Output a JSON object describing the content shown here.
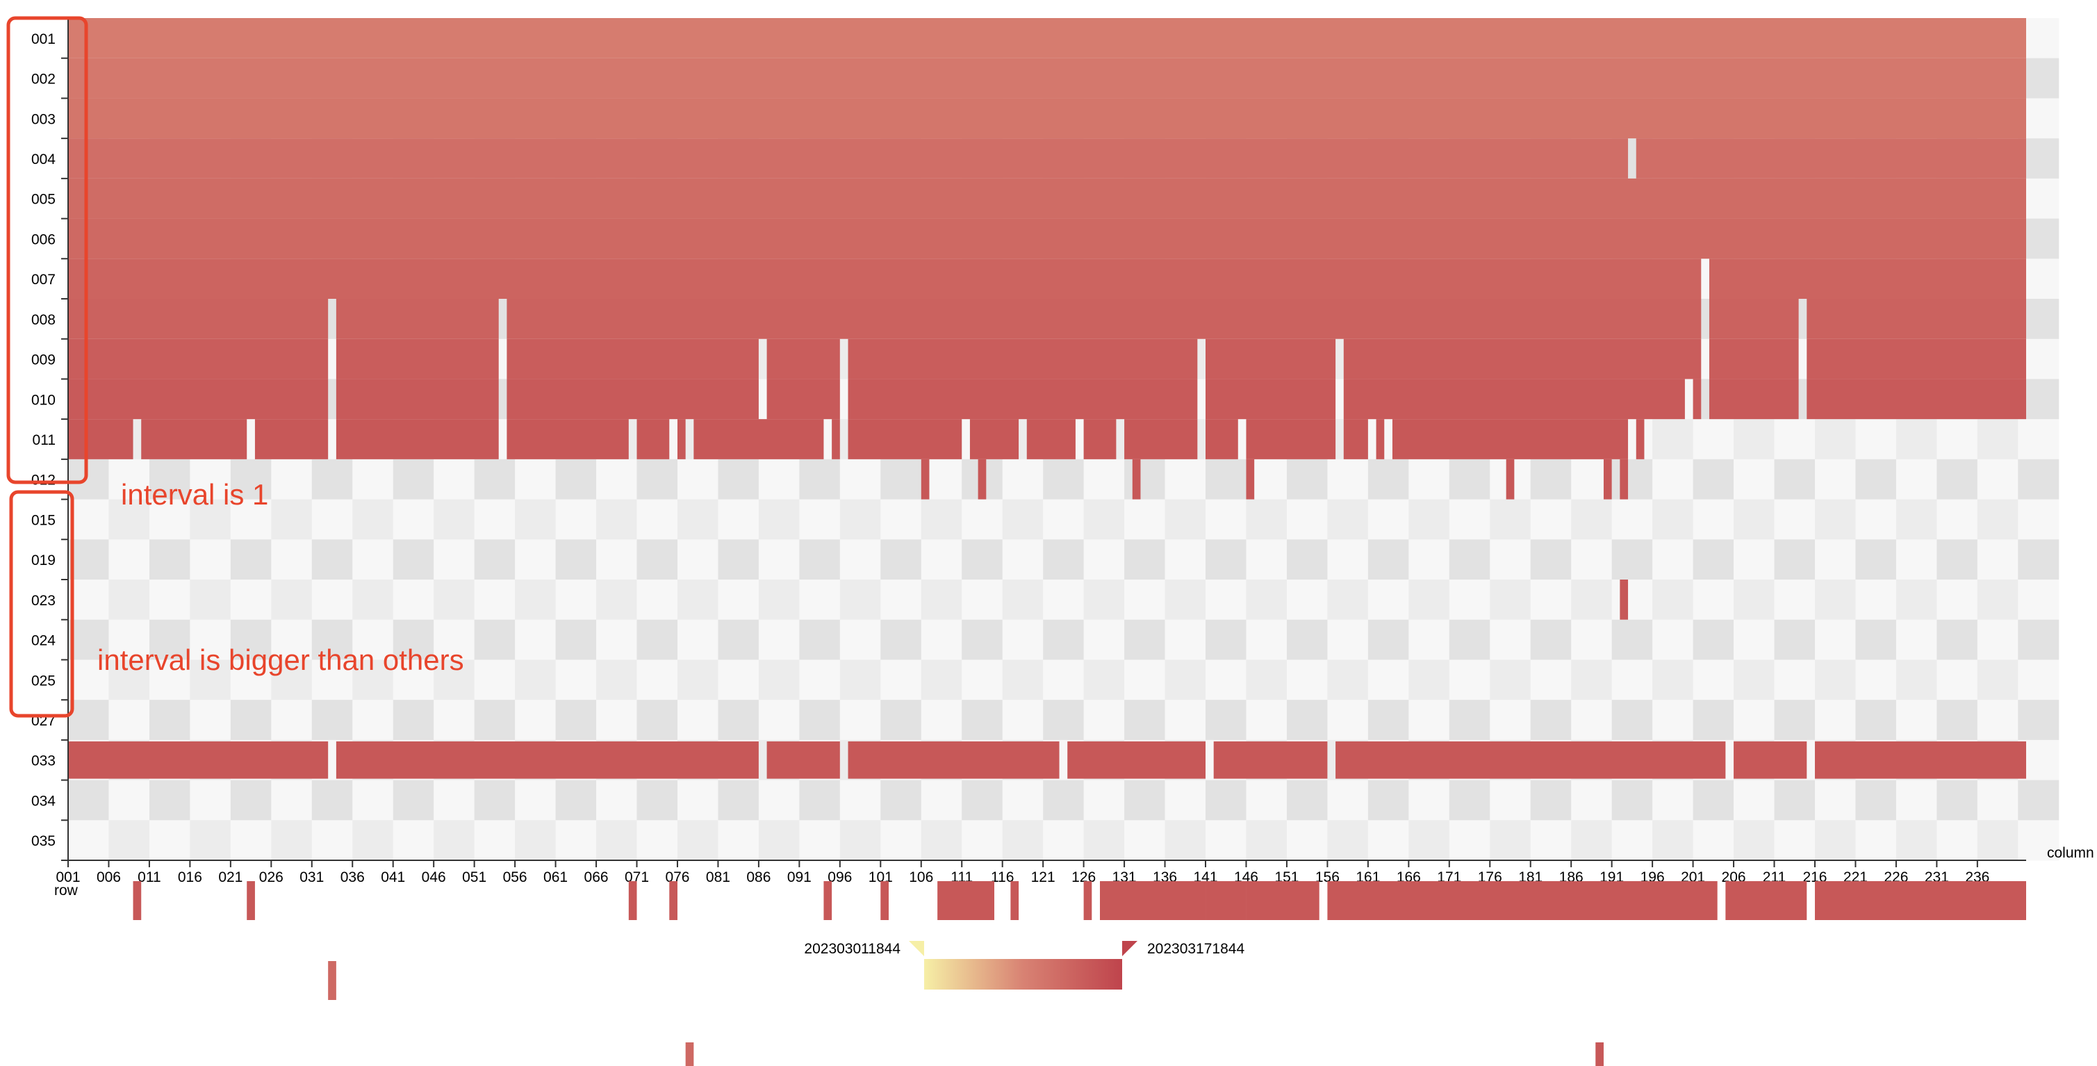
{
  "chart_data": {
    "type": "heatmap",
    "x_axis_name": "column",
    "y_axis_name": "row",
    "x_tick_labels": [
      "001",
      "006",
      "011",
      "016",
      "021",
      "026",
      "031",
      "036",
      "041",
      "046",
      "051",
      "056",
      "061",
      "066",
      "071",
      "076",
      "081",
      "086",
      "091",
      "096",
      "101",
      "106",
      "111",
      "116",
      "121",
      "126",
      "131",
      "136",
      "141",
      "146",
      "151",
      "156",
      "161",
      "166",
      "171",
      "176",
      "181",
      "186",
      "191",
      "196",
      "201",
      "206",
      "211",
      "216",
      "221",
      "226",
      "231",
      "236"
    ],
    "x_range": [
      1,
      241
    ],
    "rows": [
      "001",
      "002",
      "003",
      "004",
      "005",
      "006",
      "007",
      "008",
      "009",
      "010",
      "011",
      "012",
      "015",
      "019",
      "023",
      "024",
      "025",
      "027",
      "033",
      "034",
      "035"
    ],
    "visual_map": {
      "min_label": "202303011844",
      "max_label": "202303171844",
      "colors": [
        "#f6efa6",
        "#d88273",
        "#bf444c"
      ]
    },
    "filled_rows": {
      "001": {
        "level": 0.55,
        "gaps": []
      },
      "002": {
        "level": 0.58,
        "gaps": []
      },
      "003": {
        "level": 0.6,
        "gaps": []
      },
      "004": {
        "level": 0.66,
        "gaps": [
          193
        ]
      },
      "005": {
        "level": 0.68,
        "gaps": []
      },
      "006": {
        "level": 0.7,
        "gaps": []
      },
      "007": {
        "level": 0.74,
        "gaps": [
          202
        ]
      },
      "008": {
        "level": 0.76,
        "gaps": [
          33,
          54,
          202,
          214
        ]
      },
      "009": {
        "level": 0.8,
        "gaps": [
          33,
          54,
          86,
          96,
          140,
          157,
          202,
          214
        ]
      },
      "010": {
        "level": 0.82,
        "gaps": [
          33,
          54,
          86,
          96,
          140,
          157,
          200,
          202,
          214
        ]
      },
      "011": {
        "level": 0.84,
        "start": 1,
        "end": 195,
        "gaps": [
          9,
          23,
          33,
          54,
          70,
          75,
          77,
          94,
          96,
          111,
          118,
          125,
          130,
          140,
          145,
          157,
          161,
          163,
          193,
          195
        ]
      }
    },
    "scattered_cells": {
      "012": [
        106,
        113,
        132,
        146,
        178,
        190,
        192
      ],
      "023": [
        192
      ]
    },
    "row_033": {
      "level": 0.84,
      "start": 1,
      "end": 241,
      "gaps": [
        33,
        86,
        96,
        123,
        141,
        156,
        205,
        215
      ]
    },
    "overflow_segments": [
      [
        9,
        9
      ],
      [
        23,
        23
      ],
      [
        70,
        70
      ],
      [
        75,
        75
      ],
      [
        94,
        94
      ],
      [
        101,
        101
      ],
      [
        108,
        114
      ],
      [
        117,
        117
      ],
      [
        126,
        126
      ],
      [
        128,
        140
      ],
      [
        141,
        145
      ],
      [
        146,
        154
      ],
      [
        156,
        203
      ],
      [
        205,
        214
      ],
      [
        216,
        241
      ]
    ],
    "overflow_row2": [
      33
    ],
    "overflow_row3": [
      77,
      189
    ],
    "annotations": [
      "interval is 1",
      "interval is bigger than others"
    ],
    "grid": false,
    "legend": "bottom-center"
  }
}
